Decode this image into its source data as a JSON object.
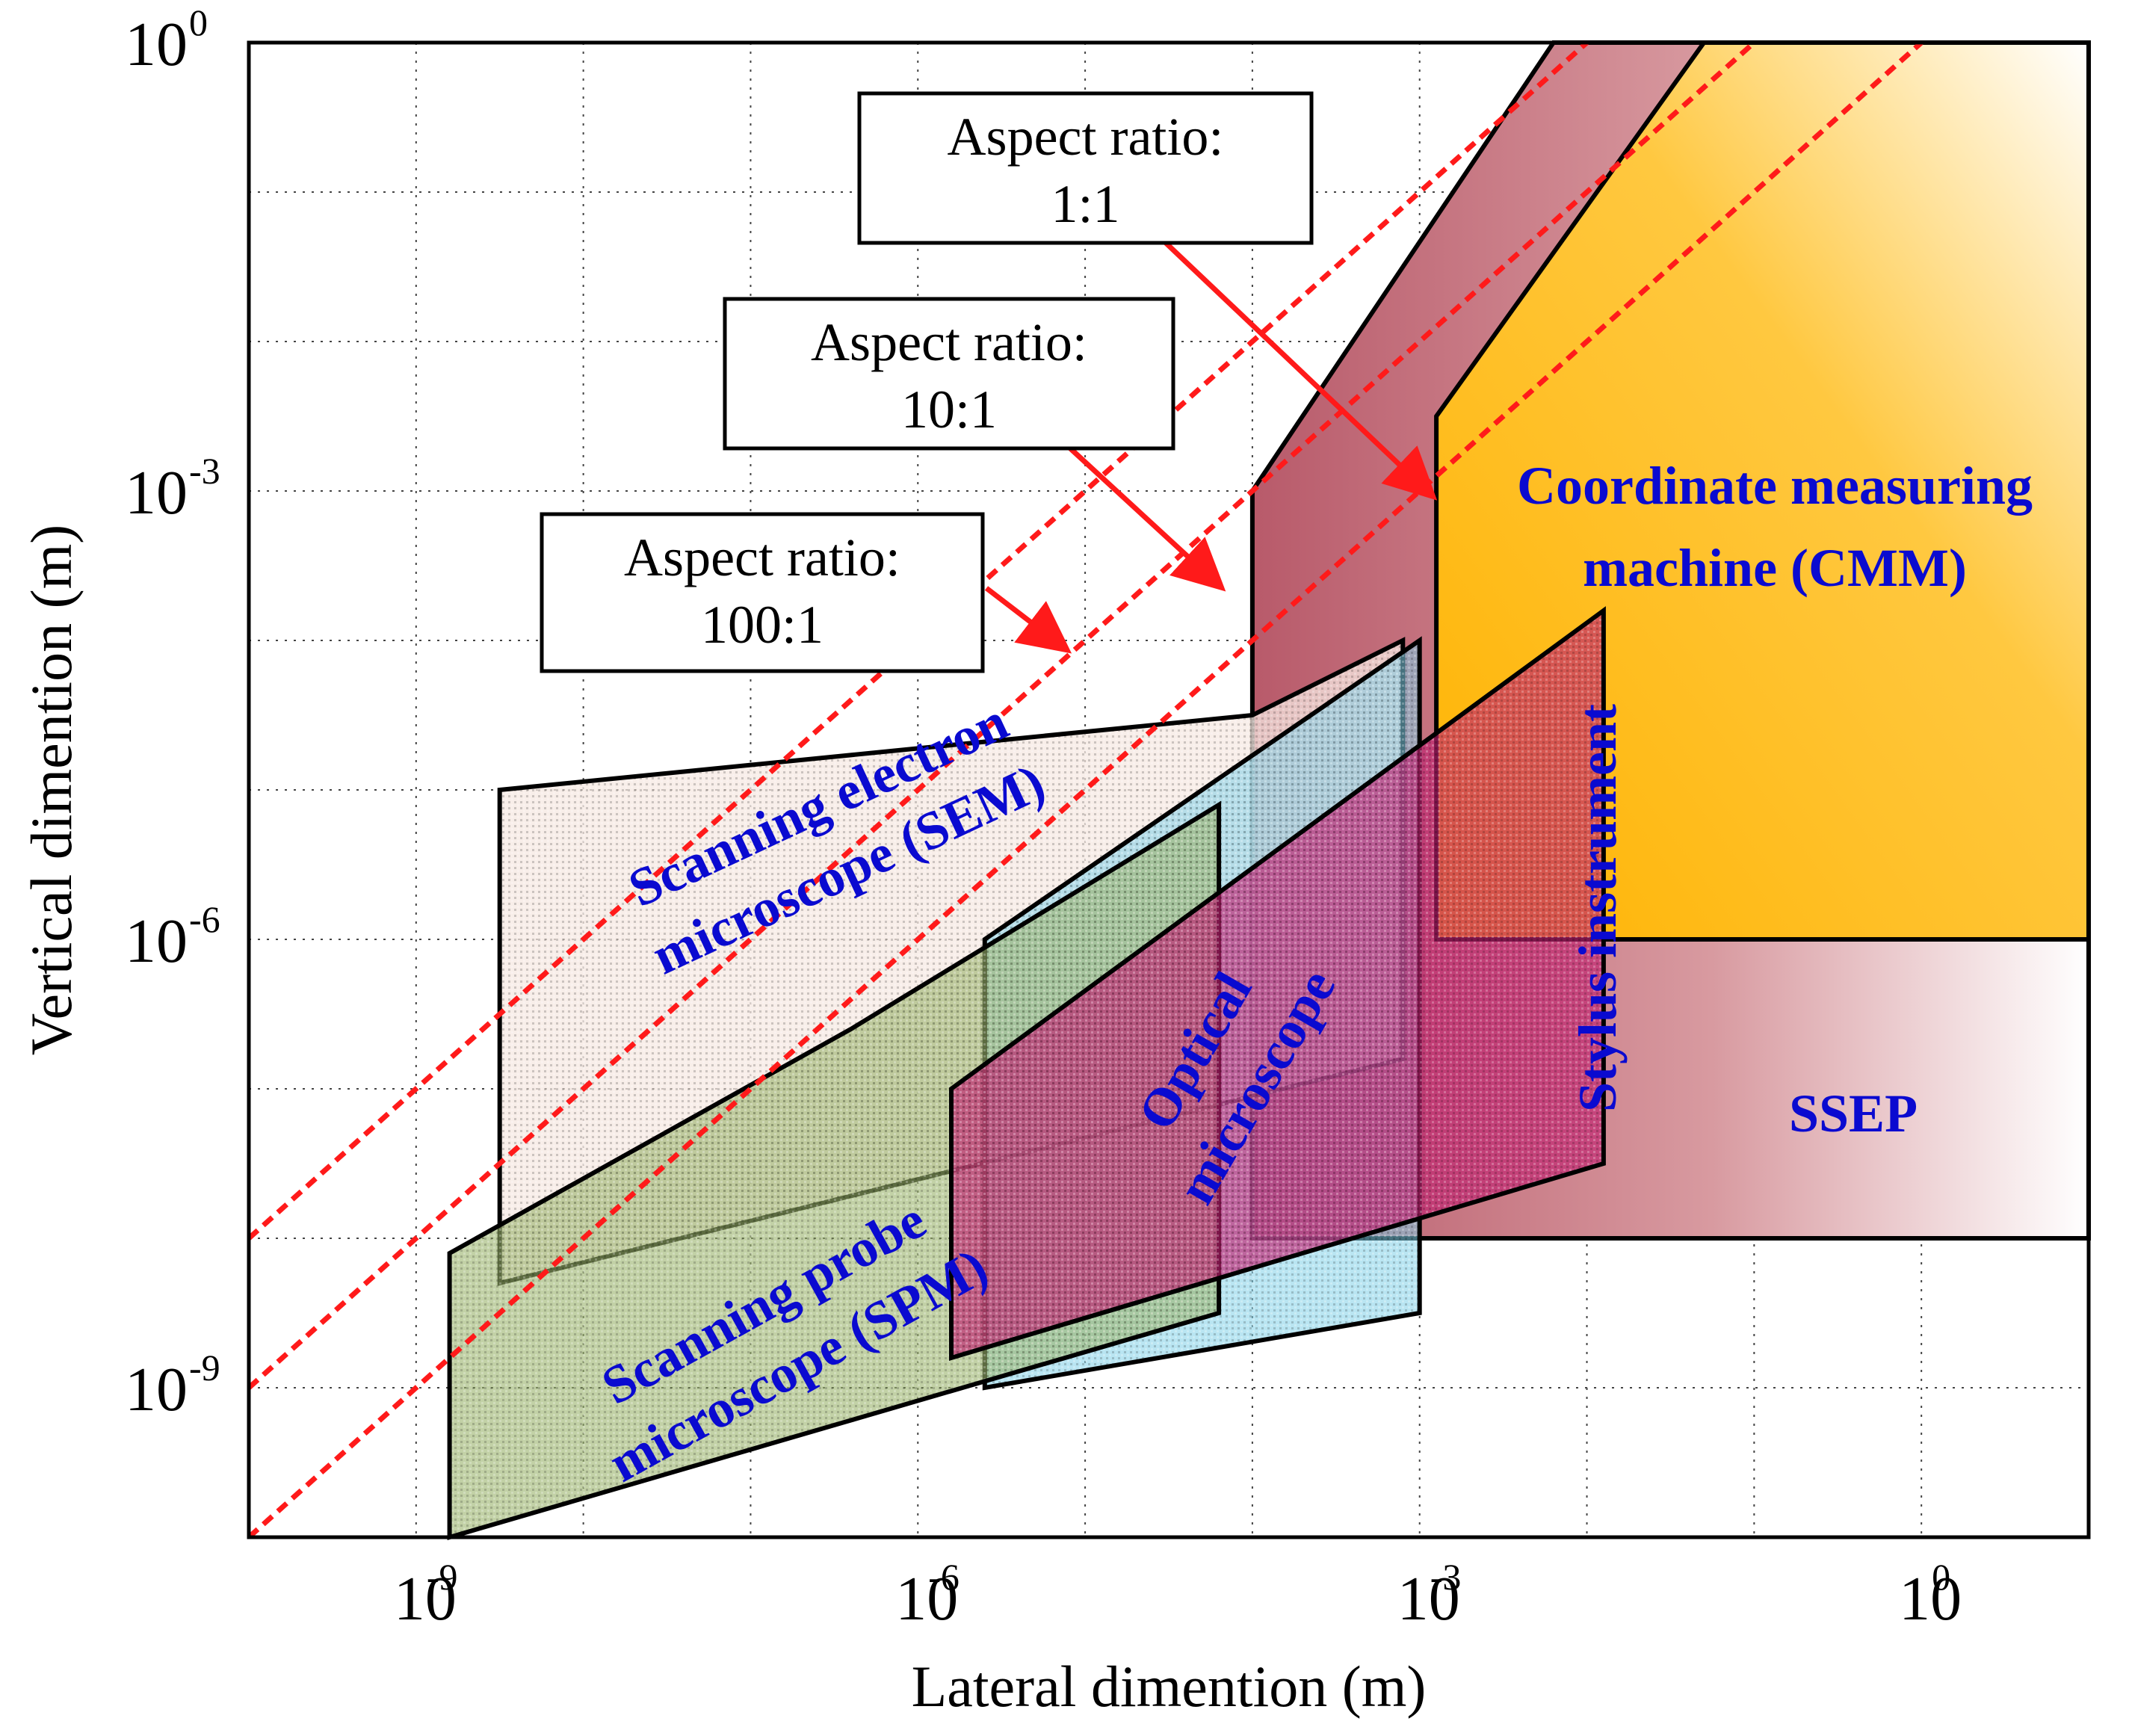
{
  "chart_data": {
    "type": "region-map",
    "xlabel": "Lateral dimention (m)",
    "ylabel": "Vertical dimention (m)",
    "x_scale": "log",
    "y_scale": "log",
    "xlim_exp": [
      -10,
      1
    ],
    "ylim_exp": [
      -10,
      0
    ],
    "x_ticks": [
      {
        "base": "10",
        "exp": "-9",
        "value_exp": -9
      },
      {
        "base": "10",
        "exp": "-6",
        "value_exp": -6
      },
      {
        "base": "10",
        "exp": "-3",
        "value_exp": -3
      },
      {
        "base": "10",
        "exp": "0",
        "value_exp": 0
      }
    ],
    "y_ticks": [
      {
        "base": "10",
        "exp": "0",
        "value_exp": 0
      },
      {
        "base": "10",
        "exp": "-3",
        "value_exp": -3
      },
      {
        "base": "10",
        "exp": "-6",
        "value_exp": -6
      },
      {
        "base": "10",
        "exp": "-9",
        "value_exp": -9
      }
    ],
    "x_minor_grid_exp": [
      -9,
      -8,
      -7,
      -6,
      -5,
      -4,
      -3,
      -2,
      -1,
      0
    ],
    "y_minor_grid_exp": [
      -9,
      -8,
      -7,
      -6,
      -5,
      -4,
      -3,
      -2,
      -1
    ],
    "grid": true,
    "colors": {
      "cmm": "#ffbb00",
      "ssep": "#c06070",
      "sem": "#f6e8e2",
      "optical": "#7fd0e8",
      "spm": "#9ab36a",
      "stylus": "#c02070",
      "aspect_line": "#ff1a1a",
      "label": "#0a0ad0"
    },
    "regions": [
      {
        "name": "SSEP",
        "label_lines": [
          "SSEP"
        ],
        "color": "#c06070",
        "polygon_log": [
          [
            -4,
            -8
          ],
          [
            -4,
            -3
          ],
          [
            -2.2,
            0
          ],
          [
            1,
            0
          ],
          [
            1,
            -8
          ]
        ]
      },
      {
        "name": "Coordinate measuring machine (CMM)",
        "label_lines": [
          "Coordinate measuring",
          "machine (CMM)"
        ],
        "color": "#ffbb00",
        "polygon_log": [
          [
            -2.9,
            -6
          ],
          [
            -2.9,
            -2.5
          ],
          [
            -1.3,
            0
          ],
          [
            1,
            0
          ],
          [
            1,
            -6
          ]
        ]
      },
      {
        "name": "Scanning electron microscope (SEM)",
        "label_lines": [
          "Scanning electron",
          "microscope (SEM)"
        ],
        "color": "#f6e8e2",
        "polygon_log": [
          [
            -8.5,
            -8.3
          ],
          [
            -8.5,
            -5
          ],
          [
            -4,
            -4.5
          ],
          [
            -3.1,
            -4
          ],
          [
            -3.1,
            -6.8
          ]
        ]
      },
      {
        "name": "Optical microscope",
        "label_lines": [
          "Optical",
          "microscope"
        ],
        "color": "#7fd0e8",
        "polygon_log": [
          [
            -5.6,
            -9
          ],
          [
            -5.6,
            -6
          ],
          [
            -3,
            -4
          ],
          [
            -3,
            -8.5
          ]
        ]
      },
      {
        "name": "Scanning probe microscope (SPM)",
        "label_lines": [
          "Scanning probe",
          "microscope (SPM)"
        ],
        "color": "#9ab36a",
        "polygon_log": [
          [
            -8.8,
            -10
          ],
          [
            -8.8,
            -8.1
          ],
          [
            -6.4,
            -6.6
          ],
          [
            -4.2,
            -5.1
          ],
          [
            -4.2,
            -8.5
          ]
        ]
      },
      {
        "name": "Stylus instrument",
        "label_lines": [
          "Stylus instrument"
        ],
        "color": "#c02070",
        "polygon_log": [
          [
            -5.8,
            -8.8
          ],
          [
            -5.8,
            -7
          ],
          [
            -1.9,
            -3.8
          ],
          [
            -1.9,
            -7.5
          ]
        ]
      }
    ],
    "aspect_ratio_lines": [
      {
        "label_line1": "Aspect ratio:",
        "label_line2": "100:1",
        "ratio_exp": 2
      },
      {
        "label_line1": "Aspect ratio:",
        "label_line2": "10:1",
        "ratio_exp": 1
      },
      {
        "label_line1": "Aspect ratio:",
        "label_line2": "1:1",
        "ratio_exp": 0
      }
    ]
  }
}
